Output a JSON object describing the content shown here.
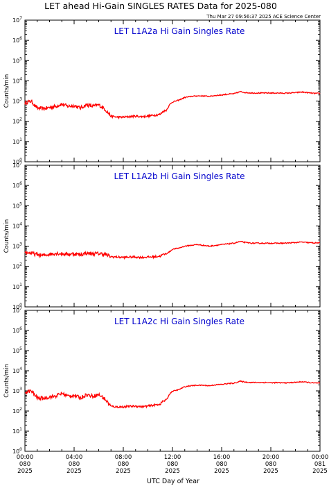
{
  "header": {
    "title": "LET ahead Hi-Gain SINGLES RATES Data for 2025-080",
    "timestamp": "Thu Mar 27 09:56:37 2025 ACE Science Center"
  },
  "x_axis_title": "UTC Day of Year",
  "x_tick_labels": [
    [
      "00:00",
      "080",
      "2025"
    ],
    [
      "04:00",
      "080",
      "2025"
    ],
    [
      "08:00",
      "080",
      "2025"
    ],
    [
      "12:00",
      "080",
      "2025"
    ],
    [
      "16:00",
      "080",
      "2025"
    ],
    [
      "20:00",
      "080",
      "2025"
    ],
    [
      "00:00",
      "081",
      "2025"
    ]
  ],
  "colors": {
    "series": "#ff0000",
    "panel_title": "#0000cc",
    "axes": "#000000"
  },
  "chart_data": [
    {
      "type": "line",
      "title": "LET L1A2a Hi Gain Singles Rate",
      "ylabel": "Counts/min",
      "yscale": "log",
      "ylim": [
        1,
        10000000
      ],
      "ytick_labels": [
        "10^0",
        "10^1",
        "10^2",
        "10^3",
        "10^4",
        "10^5",
        "10^6",
        "10^7"
      ],
      "xlabel": "",
      "xlim_hours": [
        0,
        24
      ],
      "x": [
        0,
        0.5,
        1,
        1.5,
        2,
        2.5,
        3,
        3.5,
        4,
        4.5,
        5,
        5.5,
        6,
        6.5,
        7,
        7.5,
        8,
        8.5,
        9,
        9.5,
        10,
        10.5,
        11,
        11.2,
        11.5,
        11.8,
        12,
        12.5,
        13,
        13.5,
        14,
        14.5,
        15,
        15.5,
        16,
        16.5,
        17,
        17.5,
        18,
        18.5,
        19,
        19.5,
        20,
        20.5,
        21,
        21.5,
        22,
        22.5,
        23,
        23.5,
        24
      ],
      "y": [
        800,
        1000,
        450,
        420,
        480,
        550,
        700,
        550,
        600,
        450,
        650,
        550,
        650,
        400,
        180,
        160,
        160,
        170,
        180,
        170,
        180,
        200,
        220,
        300,
        350,
        700,
        900,
        1100,
        1500,
        1700,
        1800,
        1800,
        1700,
        1900,
        2000,
        2200,
        2300,
        2900,
        2600,
        2500,
        2500,
        2500,
        2500,
        2500,
        2450,
        2500,
        2600,
        2800,
        2600,
        2400,
        2400
      ]
    },
    {
      "type": "line",
      "title": "LET L1A2b Hi Gain Singles Rate",
      "ylabel": "Counts/min",
      "yscale": "log",
      "ylim": [
        1,
        10000000
      ],
      "ytick_labels": [
        "10^0",
        "10^1",
        "10^2",
        "10^3",
        "10^4",
        "10^5",
        "10^6",
        "10^7"
      ],
      "xlabel": "",
      "xlim_hours": [
        0,
        24
      ],
      "x": [
        0,
        0.5,
        1,
        1.5,
        2,
        2.5,
        3,
        3.5,
        4,
        4.5,
        5,
        5.5,
        6,
        6.5,
        7,
        7.5,
        8,
        8.5,
        9,
        9.5,
        10,
        10.5,
        11,
        11.2,
        11.5,
        11.8,
        12,
        12.5,
        13,
        13.5,
        14,
        14.5,
        15,
        15.5,
        16,
        16.5,
        17,
        17.5,
        18,
        18.5,
        19,
        19.5,
        20,
        20.5,
        21,
        21.5,
        22,
        22.5,
        23,
        23.5,
        24
      ],
      "y": [
        500,
        450,
        380,
        350,
        400,
        450,
        420,
        400,
        420,
        380,
        450,
        420,
        430,
        400,
        300,
        290,
        280,
        290,
        290,
        280,
        290,
        300,
        320,
        380,
        420,
        550,
        700,
        800,
        1000,
        1100,
        1200,
        1100,
        1000,
        1100,
        1200,
        1300,
        1400,
        1700,
        1500,
        1400,
        1400,
        1400,
        1400,
        1400,
        1400,
        1450,
        1500,
        1600,
        1500,
        1450,
        1450
      ]
    },
    {
      "type": "line",
      "title": "LET L1A2c Hi Gain Singles Rate",
      "ylabel": "Counts/min",
      "yscale": "log",
      "ylim": [
        1,
        10000000
      ],
      "ytick_labels": [
        "10^0",
        "10^1",
        "10^2",
        "10^3",
        "10^4",
        "10^5",
        "10^6",
        "10^7"
      ],
      "xlabel": "",
      "xlim_hours": [
        0,
        24
      ],
      "x": [
        0,
        0.5,
        1,
        1.5,
        2,
        2.5,
        3,
        3.5,
        4,
        4.5,
        5,
        5.5,
        6,
        6.5,
        7,
        7.5,
        8,
        8.5,
        9,
        9.5,
        10,
        10.5,
        11,
        11.2,
        11.5,
        11.8,
        12,
        12.5,
        13,
        13.5,
        14,
        14.5,
        15,
        15.5,
        16,
        16.5,
        17,
        17.5,
        18,
        18.5,
        19,
        19.5,
        20,
        20.5,
        21,
        21.5,
        22,
        22.5,
        23,
        23.5,
        24
      ],
      "y": [
        850,
        1000,
        450,
        420,
        500,
        550,
        750,
        550,
        600,
        450,
        650,
        550,
        650,
        400,
        170,
        160,
        160,
        170,
        175,
        165,
        175,
        195,
        220,
        300,
        350,
        750,
        950,
        1150,
        1600,
        1800,
        1900,
        1900,
        1800,
        2000,
        2100,
        2300,
        2400,
        3000,
        2700,
        2600,
        2600,
        2600,
        2550,
        2550,
        2500,
        2550,
        2650,
        2850,
        2650,
        2450,
        2450
      ]
    }
  ]
}
